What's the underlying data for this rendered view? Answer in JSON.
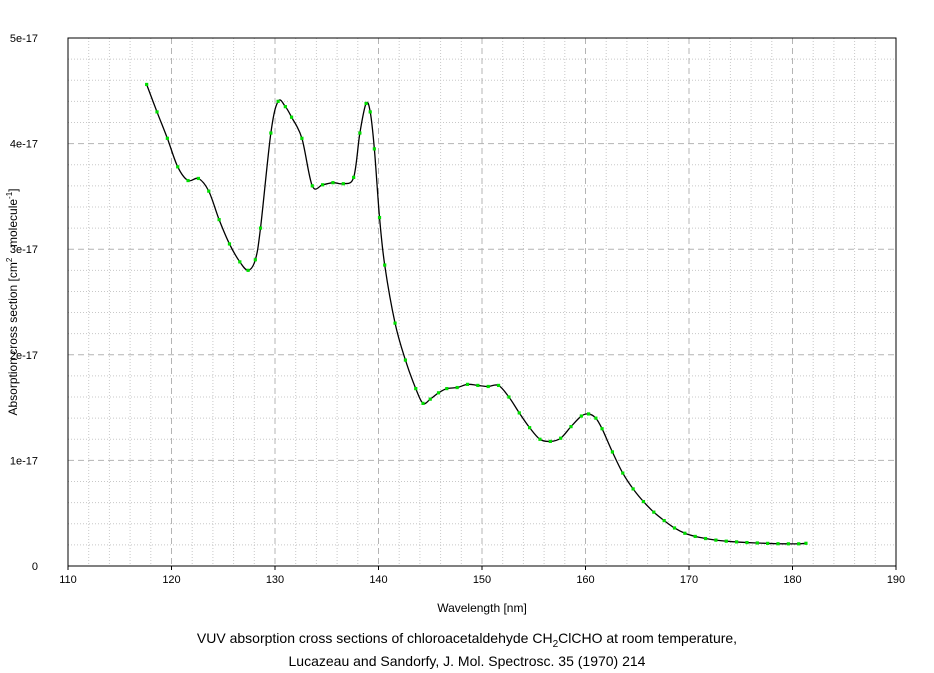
{
  "chart_data": {
    "type": "line",
    "xlabel": "Wavelength [nm]",
    "ylabel": "Absorption cross section [cm² · molecule⁻¹]",
    "ylabel_parts": {
      "pre": "Absorption cross section [cm",
      "sup1": "2",
      "mid": " · molecule",
      "sup2": "-1",
      "post": "]"
    },
    "xlim": [
      110,
      190
    ],
    "ylim": [
      0,
      5e-17
    ],
    "xticks": [
      110,
      120,
      130,
      140,
      150,
      160,
      170,
      180,
      190
    ],
    "xtick_labels": [
      "110",
      "120",
      "130",
      "140",
      "150",
      "160",
      "170",
      "180",
      "190"
    ],
    "yticks": [
      0,
      1e-17,
      2e-17,
      3e-17,
      4e-17,
      5e-17
    ],
    "ytick_labels": [
      "0",
      "1e-17",
      "2e-17",
      "3e-17",
      "4e-17",
      "5e-17"
    ],
    "grid": true,
    "line_color": "#000000",
    "marker_color": "#00dd00",
    "series": [
      {
        "x": [
          117.6,
          118.6,
          119.6,
          120.6,
          121.6,
          122.6,
          123.6,
          124.6,
          125.6,
          126.6,
          127.4,
          128.1,
          128.6,
          129.6,
          130.3,
          131.0,
          131.6,
          132.6,
          133.6,
          134.6,
          135.6,
          136.6,
          137.6,
          138.2,
          138.8,
          139.2,
          139.6,
          140.1,
          140.6,
          141.6,
          142.6,
          143.6,
          144.3,
          145.0,
          145.8,
          146.6,
          147.6,
          148.6,
          149.6,
          150.6,
          151.6,
          152.6,
          153.6,
          154.6,
          155.6,
          156.6,
          157.6,
          158.6,
          159.6,
          160.3,
          161.0,
          161.6,
          162.6,
          163.6,
          164.6,
          165.6,
          166.6,
          167.6,
          168.6,
          169.6,
          170.6,
          171.6,
          172.6,
          173.6,
          174.6,
          175.6,
          176.6,
          177.6,
          178.6,
          179.6,
          180.6,
          181.3
        ],
        "y": [
          4.56e-17,
          4.3e-17,
          4.05e-17,
          3.78e-17,
          3.65e-17,
          3.67e-17,
          3.55e-17,
          3.28e-17,
          3.05e-17,
          2.88e-17,
          2.8e-17,
          2.9e-17,
          3.2e-17,
          4.1e-17,
          4.4e-17,
          4.35e-17,
          4.25e-17,
          4.05e-17,
          3.6e-17,
          3.61e-17,
          3.63e-17,
          3.62e-17,
          3.68e-17,
          4.1e-17,
          4.38e-17,
          4.3e-17,
          3.95e-17,
          3.3e-17,
          2.85e-17,
          2.3e-17,
          1.95e-17,
          1.68e-17,
          1.54e-17,
          1.58e-17,
          1.64e-17,
          1.68e-17,
          1.69e-17,
          1.72e-17,
          1.71e-17,
          1.7e-17,
          1.71e-17,
          1.6e-17,
          1.45e-17,
          1.31e-17,
          1.2e-17,
          1.18e-17,
          1.21e-17,
          1.32e-17,
          1.42e-17,
          1.44e-17,
          1.4e-17,
          1.3e-17,
          1.08e-17,
          8.8e-18,
          7.3e-18,
          6.1e-18,
          5.1e-18,
          4.3e-18,
          3.6e-18,
          3.1e-18,
          2.8e-18,
          2.6e-18,
          2.45e-18,
          2.35e-18,
          2.28e-18,
          2.22e-18,
          2.18e-18,
          2.14e-18,
          2.11e-18,
          2.1e-18,
          2.1e-18,
          2.15e-18
        ]
      }
    ]
  },
  "caption": {
    "line1_pre": "VUV absorption cross sections of chloroacetaldehyde CH",
    "line1_sub": "2",
    "line1_post": "ClCHO at room temperature,",
    "line2": "Lucazeau and Sandorfy, J. Mol. Spectrosc. 35 (1970) 214"
  }
}
